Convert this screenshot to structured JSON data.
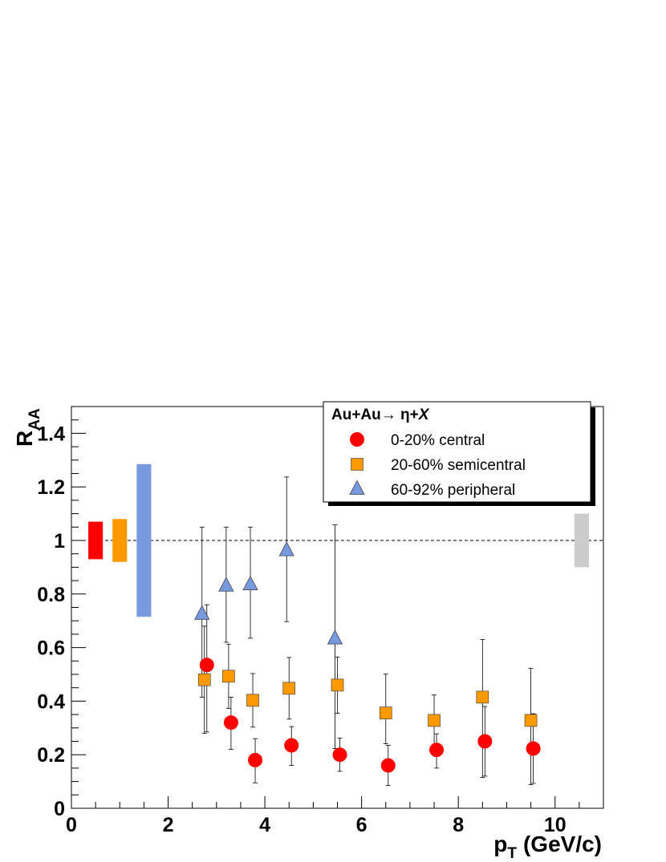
{
  "chart_data": {
    "type": "scatter",
    "xlabel": "p",
    "xlabel_sub": "T",
    "xlabel_units": "(GeV/c)",
    "ylabel": "R",
    "ylabel_sub": "AA",
    "xlim": [
      0,
      11
    ],
    "ylim": [
      0,
      1.5
    ],
    "x_ticks": [
      0,
      2,
      4,
      6,
      8,
      10
    ],
    "x_tick_labels": [
      "0",
      "2",
      "4",
      "6",
      "8",
      "10"
    ],
    "y_ticks": [
      0,
      0.2,
      0.4,
      0.6,
      0.8,
      1,
      1.2,
      1.4
    ],
    "y_tick_labels": [
      "0",
      "0.2",
      "0.4",
      "0.6",
      "0.8",
      "1",
      "1.2",
      "1.4"
    ],
    "reference_line": 1.0,
    "legend": {
      "placement": "top-right",
      "title_prefix": "Au+Au",
      "title_arrow": "→",
      "title_particle": " η+",
      "title_x": "X"
    },
    "series": [
      {
        "name": "0-20% central",
        "marker": "circle",
        "color": "#ff0000",
        "x": [
          2.8,
          3.3,
          3.8,
          4.55,
          5.55,
          6.55,
          7.55,
          8.55,
          9.55
        ],
        "y": [
          0.535,
          0.32,
          0.18,
          0.235,
          0.2,
          0.16,
          0.218,
          0.25,
          0.223
        ],
        "err_low": [
          0.25,
          0.1,
          0.085,
          0.075,
          0.062,
          0.075,
          0.068,
          0.13,
          0.13
        ],
        "err_high": [
          0.225,
          0.095,
          0.08,
          0.07,
          0.062,
          0.075,
          0.06,
          0.13,
          0.13
        ]
      },
      {
        "name": "20-60% semicentral",
        "marker": "square",
        "color": "#ff9900",
        "x": [
          2.75,
          3.25,
          3.75,
          4.5,
          5.5,
          6.5,
          7.5,
          8.5,
          9.5
        ],
        "y": [
          0.48,
          0.493,
          0.403,
          0.448,
          0.46,
          0.356,
          0.328,
          0.415,
          0.328
        ],
        "err_low": [
          0.2,
          0.12,
          0.1,
          0.115,
          0.105,
          0.115,
          0.1,
          0.3,
          0.24
        ],
        "err_high": [
          0.2,
          0.12,
          0.1,
          0.115,
          0.105,
          0.145,
          0.095,
          0.215,
          0.195
        ]
      },
      {
        "name": "60-92% peripheral",
        "marker": "triangle",
        "color": "#7799dd",
        "x": [
          2.7,
          3.2,
          3.7,
          4.45,
          5.45
        ],
        "y": [
          0.725,
          0.83,
          0.835,
          0.962,
          0.633
        ],
        "err_low": [
          0.31,
          0.21,
          0.2,
          0.265,
          0.41
        ],
        "err_high": [
          0.325,
          0.22,
          0.215,
          0.275,
          0.425
        ]
      }
    ],
    "normalization_boxes": [
      {
        "x_center": 0.5,
        "width": 0.3,
        "y_low": 0.93,
        "y_high": 1.07,
        "color": "#ff0000"
      },
      {
        "x_center": 1.0,
        "width": 0.3,
        "y_low": 0.92,
        "y_high": 1.08,
        "color": "#ff9900"
      },
      {
        "x_center": 1.5,
        "width": 0.3,
        "y_low": 0.715,
        "y_high": 1.285,
        "color": "#7799dd"
      },
      {
        "x_center": 10.55,
        "width": 0.3,
        "y_low": 0.9,
        "y_high": 1.1,
        "color": "#cccccc"
      }
    ]
  }
}
